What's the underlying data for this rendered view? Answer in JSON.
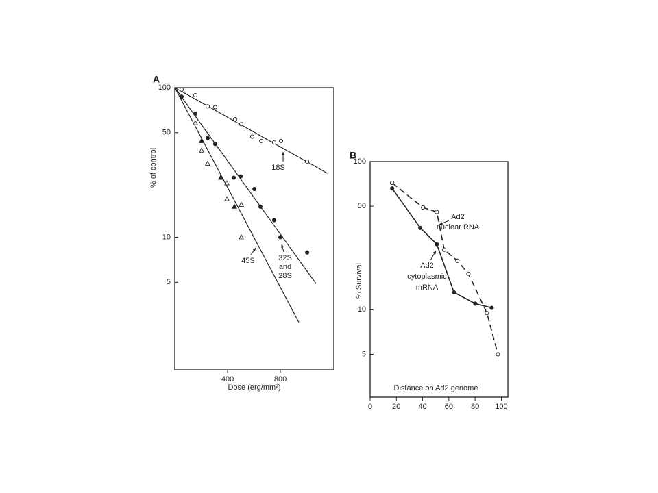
{
  "chart_data": [
    {
      "type": "scatter",
      "panel": "A",
      "ylabel": "% of control",
      "xlabel": "Dose (erg/mm²)",
      "xlim": [
        0,
        1205
      ],
      "xticks": [
        400,
        800
      ],
      "ylim": [
        1.3,
        100
      ],
      "yticks": [
        100,
        50,
        10,
        5
      ],
      "log_y": true,
      "grid": false,
      "series": [
        {
          "name_lines": [
            "18S"
          ],
          "marker": "circle",
          "filled": false,
          "color": "#222222",
          "x": [
            52,
            156,
            249,
            306,
            457,
            504,
            587,
            655,
            753,
            805,
            1003
          ],
          "values": [
            97,
            89,
            75,
            74,
            61.5,
            57,
            47,
            44,
            43,
            44,
            32
          ],
          "fit": {
            "x": [
              0,
              1158
            ],
            "y": [
              100,
              26.7
            ]
          }
        },
        {
          "name_lines": [
            "32S",
            "and",
            "28S"
          ],
          "marker": "circle",
          "filled": true,
          "color": "#222222",
          "x": [
            52,
            156,
            249,
            306,
            447,
            499,
            603,
            649,
            753,
            800,
            1003
          ],
          "values": [
            87,
            67,
            46,
            42,
            25,
            25.5,
            21,
            16,
            13,
            10,
            7.9
          ],
          "fit": {
            "x": [
              0,
              1070
            ],
            "y": [
              100,
              4.9
            ]
          }
        },
        {
          "name_lines": [
            "45S"
          ],
          "marker": "triangle",
          "filled": [
            false,
            true,
            false,
            false,
            true,
            false,
            false,
            true,
            false,
            false
          ],
          "color": "#222222",
          "x": [
            156,
            203,
            203,
            249,
            348,
            395,
            395,
            452,
            504,
            504
          ],
          "values": [
            58,
            44,
            38,
            31,
            25,
            23,
            18,
            16,
            16.5,
            10
          ],
          "fit": {
            "x": [
              0,
              940
            ],
            "y": [
              100,
              2.7
            ]
          }
        }
      ]
    },
    {
      "type": "line",
      "panel": "B",
      "ylabel": "% Survival",
      "xlabel": "Distance on Ad2 genome",
      "xlim": [
        0,
        105
      ],
      "xticks": [
        0,
        20,
        40,
        60,
        80,
        100
      ],
      "ylim": [
        2.57,
        100
      ],
      "yticks": [
        100,
        50,
        10,
        5
      ],
      "log_y": true,
      "grid": false,
      "series": [
        {
          "name_lines": [
            "Ad2",
            "nuclear RNA"
          ],
          "marker": "circle",
          "filled": false,
          "dashed": true,
          "color": "#222222",
          "x": [
            16.8,
            40.3,
            50.8,
            56.5,
            66.5,
            74.9,
            89,
            97.4
          ],
          "values": [
            71.8,
            49,
            45.7,
            25.4,
            21.4,
            17.5,
            9.5,
            5
          ]
        },
        {
          "name_lines": [
            "Ad2",
            "cytoplasmic",
            "mRNA"
          ],
          "marker": "circle",
          "filled": true,
          "dashed": false,
          "color": "#222222",
          "x": [
            16.8,
            38.2,
            50.8,
            63.9,
            80.1,
            92.7
          ],
          "values": [
            65.9,
            35.7,
            27.7,
            13.1,
            11,
            10.3
          ]
        }
      ]
    }
  ]
}
